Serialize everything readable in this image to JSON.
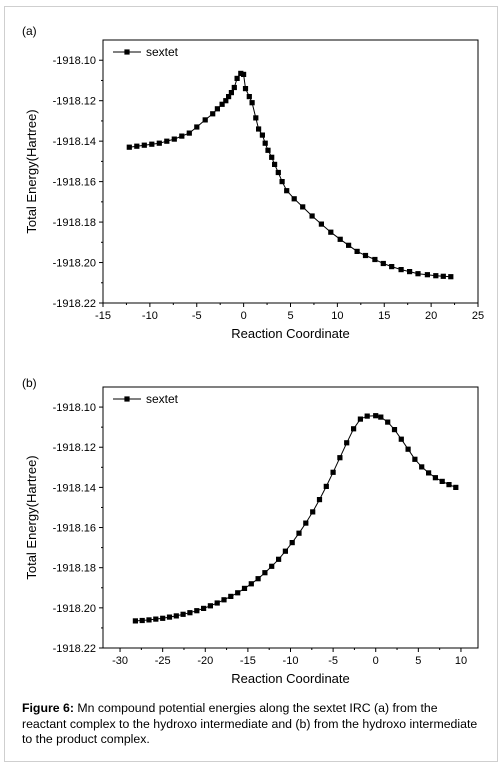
{
  "chart_data": [
    {
      "type": "line",
      "panel_label": "(a)",
      "xlabel": "Reaction Coordinate",
      "ylabel": "Total Energy(Hartree)",
      "xlim": [
        -15,
        25
      ],
      "ylim": [
        -1918.22,
        -1918.09
      ],
      "x_ticks": [
        -15,
        -10,
        -5,
        0,
        5,
        10,
        15,
        20,
        25
      ],
      "y_ticks": [
        -1918.1,
        -1918.12,
        -1918.14,
        -1918.16,
        -1918.18,
        -1918.2,
        -1918.22
      ],
      "x_tick_labels": [
        "-15",
        "-10",
        "-5",
        "0",
        "5",
        "10",
        "15",
        "20",
        "25"
      ],
      "y_tick_labels": [
        "-1918.10",
        "-1918.12",
        "-1918.14",
        "-1918.16",
        "-1918.18",
        "-1918.20",
        "-1918.22"
      ],
      "grid": false,
      "legend_position": "top-left",
      "series": [
        {
          "name": "sextet",
          "marker": "square",
          "color": "#000000",
          "x": [
            -12.2,
            -11.4,
            -10.6,
            -9.8,
            -9.0,
            -8.2,
            -7.4,
            -6.6,
            -5.8,
            -5.0,
            -4.1,
            -3.3,
            -2.8,
            -2.3,
            -1.9,
            -1.6,
            -1.3,
            -1.0,
            -0.7,
            -0.3,
            0.0,
            0.2,
            0.6,
            0.9,
            1.3,
            1.6,
            2.0,
            2.3,
            2.6,
            3.0,
            3.3,
            3.7,
            4.1,
            4.6,
            5.4,
            6.3,
            7.3,
            8.3,
            9.3,
            10.3,
            11.2,
            12.1,
            13.0,
            14.0,
            14.9,
            15.8,
            16.8,
            17.7,
            18.6,
            19.6,
            20.5,
            21.3,
            22.1
          ],
          "y": [
            -1918.143,
            -1918.1425,
            -1918.142,
            -1918.1415,
            -1918.141,
            -1918.14,
            -1918.139,
            -1918.1375,
            -1918.136,
            -1918.133,
            -1918.1295,
            -1918.1265,
            -1918.124,
            -1918.1218,
            -1918.12,
            -1918.118,
            -1918.116,
            -1918.1135,
            -1918.109,
            -1918.1065,
            -1918.107,
            -1918.114,
            -1918.118,
            -1918.121,
            -1918.1285,
            -1918.134,
            -1918.137,
            -1918.141,
            -1918.1445,
            -1918.148,
            -1918.1515,
            -1918.1555,
            -1918.16,
            -1918.1645,
            -1918.1685,
            -1918.1725,
            -1918.177,
            -1918.181,
            -1918.185,
            -1918.1885,
            -1918.1915,
            -1918.1945,
            -1918.1965,
            -1918.1985,
            -1918.2005,
            -1918.202,
            -1918.2035,
            -1918.2045,
            -1918.2055,
            -1918.206,
            -1918.2065,
            -1918.2068,
            -1918.207
          ]
        }
      ]
    },
    {
      "type": "line",
      "panel_label": "(b)",
      "xlabel": "Reaction Coordinate",
      "ylabel": "Total Energy(Hartree)",
      "xlim": [
        -32,
        12
      ],
      "ylim": [
        -1918.22,
        -1918.09
      ],
      "x_ticks": [
        -30,
        -25,
        -20,
        -15,
        -10,
        -5,
        0,
        5,
        10
      ],
      "y_ticks": [
        -1918.1,
        -1918.12,
        -1918.14,
        -1918.16,
        -1918.18,
        -1918.2,
        -1918.22
      ],
      "x_tick_labels": [
        "-30",
        "-25",
        "-20",
        "-15",
        "-10",
        "-5",
        "0",
        "5",
        "10"
      ],
      "y_tick_labels": [
        "-1918.10",
        "-1918.12",
        "-1918.14",
        "-1918.16",
        "-1918.18",
        "-1918.20",
        "-1918.22"
      ],
      "grid": false,
      "legend_position": "top-left",
      "series": [
        {
          "name": "sextet",
          "marker": "square",
          "color": "#000000",
          "x": [
            -28.2,
            -27.4,
            -26.6,
            -25.8,
            -25.0,
            -24.2,
            -23.4,
            -22.6,
            -21.8,
            -21.0,
            -20.2,
            -19.4,
            -18.6,
            -17.8,
            -17.0,
            -16.2,
            -15.4,
            -14.6,
            -13.8,
            -13.0,
            -12.2,
            -11.4,
            -10.6,
            -9.8,
            -9.0,
            -8.2,
            -7.4,
            -6.6,
            -5.8,
            -5.0,
            -4.2,
            -3.4,
            -2.6,
            -1.8,
            -1.0,
            0.0,
            0.6,
            1.4,
            2.2,
            3.0,
            3.8,
            4.6,
            5.4,
            6.2,
            7.0,
            7.8,
            8.6,
            9.4
          ],
          "y": [
            -1918.2065,
            -1918.2063,
            -1918.206,
            -1918.2056,
            -1918.2052,
            -1918.2046,
            -1918.204,
            -1918.2032,
            -1918.2024,
            -1918.2014,
            -1918.2003,
            -1918.199,
            -1918.1976,
            -1918.196,
            -1918.1943,
            -1918.1925,
            -1918.1903,
            -1918.188,
            -1918.1855,
            -1918.1825,
            -1918.1793,
            -1918.1758,
            -1918.1718,
            -1918.1675,
            -1918.1628,
            -1918.1578,
            -1918.1522,
            -1918.1461,
            -1918.1395,
            -1918.1325,
            -1918.1252,
            -1918.1178,
            -1918.1108,
            -1918.106,
            -1918.1045,
            -1918.1043,
            -1918.105,
            -1918.1075,
            -1918.1112,
            -1918.116,
            -1918.121,
            -1918.126,
            -1918.1298,
            -1918.1328,
            -1918.1352,
            -1918.137,
            -1918.1386,
            -1918.14
          ]
        }
      ]
    }
  ],
  "caption": {
    "label": "Figure 6:",
    "text": " Mn compound potential energies along the sextet IRC (a) from the reactant complex to the hydroxo intermediate and (b) from the hydroxo intermediate to the product complex."
  }
}
